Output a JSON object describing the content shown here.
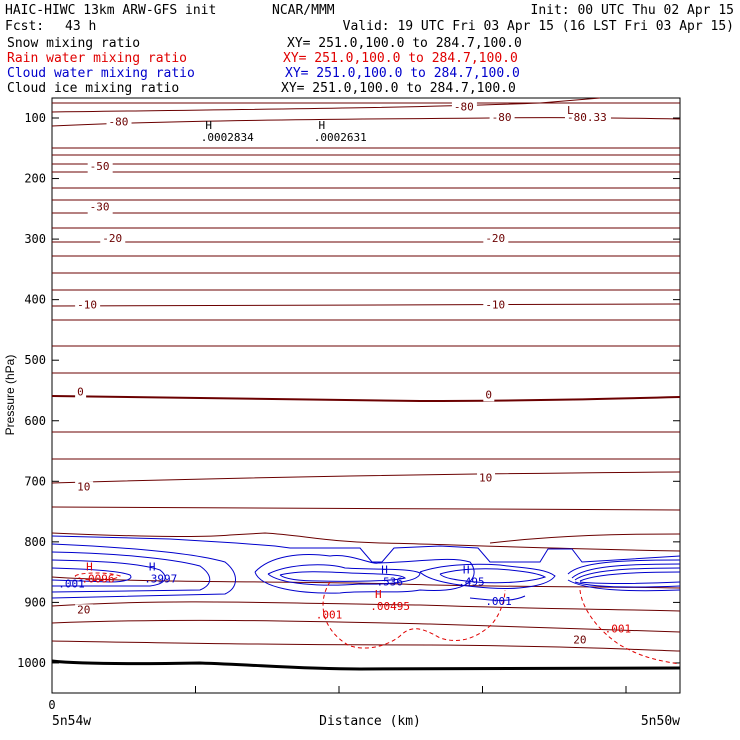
{
  "header": {
    "model": "HAIC-HIWC 13km ARW-GFS init",
    "org": "NCAR/MMM",
    "init": "Init: 00 UTC Thu 02 Apr 15",
    "fcst_label": "Fcst:",
    "fcst_value": "43 h",
    "valid": "Valid: 19 UTC Fri 03 Apr 15 (16 LST Fri 03 Apr 15)"
  },
  "colors": {
    "snow": "#000000",
    "rain": "#e00000",
    "cloud_water": "#0000cc",
    "cloud_ice": "#000000",
    "temperature": "#6b0000"
  },
  "chart_data": {
    "type": "cross-section contour",
    "fields": [
      {
        "name": "Snow mixing ratio",
        "xy": "XY= 251.0,100.0 to 284.7,100.0",
        "color": "#000000"
      },
      {
        "name": "Rain water mixing ratio",
        "xy": "XY= 251.0,100.0 to 284.7,100.0",
        "color": "#e00000"
      },
      {
        "name": "Cloud water mixing ratio",
        "xy": "XY= 251.0,100.0 to 284.7,100.0",
        "color": "#0000cc"
      },
      {
        "name": "Cloud ice mixing ratio",
        "xy": "XY= 251.0,100.0 to 284.7,100.0",
        "color": "#000000"
      }
    ],
    "xlabel": "Distance (km)",
    "ylabel": "Pressure (hPa)",
    "x_ticks": [
      "0"
    ],
    "x_endpoints": [
      "5n54w",
      "5n50w"
    ],
    "y_ticks": [
      100,
      200,
      300,
      400,
      500,
      600,
      700,
      800,
      900,
      1000
    ],
    "ylim": [
      1050,
      50
    ],
    "temperature_labels": [
      {
        "text": "-80",
        "x": 0.09,
        "p": 112
      },
      {
        "text": "-80",
        "x": 0.64,
        "p": 88
      },
      {
        "text": "-80",
        "x": 0.7,
        "p": 105
      },
      {
        "text": "-50",
        "x": 0.06,
        "p": 186
      },
      {
        "text": "-30",
        "x": 0.06,
        "p": 253
      },
      {
        "text": "-20",
        "x": 0.08,
        "p": 305
      },
      {
        "text": "-20",
        "x": 0.69,
        "p": 305
      },
      {
        "text": "-10",
        "x": 0.04,
        "p": 415
      },
      {
        "text": "-10",
        "x": 0.69,
        "p": 415
      },
      {
        "text": "0",
        "x": 0.04,
        "p": 558
      },
      {
        "text": "0",
        "x": 0.69,
        "p": 563
      },
      {
        "text": "10",
        "x": 0.04,
        "p": 715
      },
      {
        "text": "10",
        "x": 0.68,
        "p": 700
      },
      {
        "text": "20",
        "x": 0.04,
        "p": 918
      },
      {
        "text": "20",
        "x": 0.83,
        "p": 968
      },
      {
        "text": "-80.33",
        "x": 0.82,
        "p": 105
      }
    ],
    "extrema": [
      {
        "mark": "L",
        "value": "-80.33",
        "x": 0.82,
        "p": 93,
        "color": "#6b0000"
      },
      {
        "mark": "H",
        "value": ".0002834",
        "x": 0.24,
        "p": 118,
        "color": "#000000"
      },
      {
        "mark": "H",
        "value": ".0002631",
        "x": 0.42,
        "p": 118,
        "color": "#000000"
      },
      {
        "mark": "H",
        "value": ".0096",
        "x": 0.05,
        "p": 847,
        "color": "#e00000"
      },
      {
        "mark": "H",
        "value": ".3997",
        "x": 0.15,
        "p": 847,
        "color": "#0000cc"
      },
      {
        "mark": "H",
        "value": ".536",
        "x": 0.52,
        "p": 852,
        "color": "#0000cc"
      },
      {
        "mark": "H",
        "value": ".495",
        "x": 0.65,
        "p": 852,
        "color": "#0000cc"
      },
      {
        "mark": "H",
        "value": ".00495",
        "x": 0.51,
        "p": 893,
        "color": "#e00000"
      }
    ],
    "contour_value_labels": [
      {
        "text": ".001",
        "x": 0.01,
        "p": 875,
        "color": "#0000cc"
      },
      {
        "text": ".001",
        "x": 0.69,
        "p": 904,
        "color": "#0000cc"
      },
      {
        "text": ".001",
        "x": 0.42,
        "p": 927,
        "color": "#e00000"
      },
      {
        "text": ".001",
        "x": 0.88,
        "p": 950,
        "color": "#e00000"
      }
    ]
  }
}
